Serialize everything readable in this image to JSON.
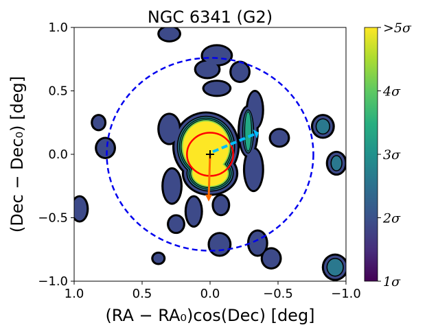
{
  "chart_data": {
    "type": "heatmap",
    "title": "NGC 6341 (G2)",
    "xlabel": "(RA − RA₀)cos(Dec) [deg]",
    "ylabel": "(Dec − Dec₀) [deg]",
    "xlim": [
      1.0,
      -1.0
    ],
    "ylim": [
      -1.0,
      1.0
    ],
    "xticks": [
      "1.0",
      "0.5",
      "0.0",
      "−0.5",
      "−1.0"
    ],
    "yticks": [
      "−1.0",
      "−0.5",
      "0.0",
      "0.5",
      "1.0"
    ],
    "xtick_values": [
      1.0,
      0.5,
      0.0,
      -0.5,
      -1.0
    ],
    "ytick_values": [
      -1.0,
      -0.5,
      0.0,
      0.5,
      1.0
    ],
    "colorbar": {
      "range": [
        1,
        5
      ],
      "ticks": [
        "1σ",
        "2σ",
        "3σ",
        "4σ",
        ">5σ"
      ],
      "tick_values": [
        1,
        2,
        3,
        4,
        5
      ],
      "colormap": "viridis"
    },
    "cluster_center": [
      0.0,
      0.0
    ],
    "inner_circle_radius_deg": 0.17,
    "outer_circle_radius_deg": 0.76,
    "proper_motion_arrow": {
      "from": [
        0.0,
        0.0
      ],
      "to": [
        0.01,
        -0.34
      ],
      "color": "#ff6a00"
    },
    "dashed_arrow": {
      "from": [
        -0.02,
        0.02
      ],
      "to": [
        -0.33,
        0.16
      ],
      "color": "#00bfff"
    },
    "blobs": [
      {
        "x": 0.03,
        "y": 0.06,
        "rx": 0.22,
        "ry": 0.25,
        "level": 5
      },
      {
        "x": 0.0,
        "y": -0.15,
        "rx": 0.18,
        "ry": 0.15,
        "level": 5
      },
      {
        "x": -0.28,
        "y": 0.18,
        "rx": 0.05,
        "ry": 0.18,
        "level": 3
      },
      {
        "x": -0.05,
        "y": 0.52,
        "rx": 0.08,
        "ry": 0.04,
        "level": 1
      },
      {
        "x": 0.02,
        "y": 0.67,
        "rx": 0.07,
        "ry": 0.05,
        "level": 1
      },
      {
        "x": -0.02,
        "y": 0.77,
        "rx": 0.06,
        "ry": 0.035,
        "level": 1
      },
      {
        "x": 0.3,
        "y": 0.95,
        "rx": 0.06,
        "ry": 0.04,
        "level": 1
      },
      {
        "x": -0.05,
        "y": 0.78,
        "rx": 0.09,
        "ry": 0.06,
        "level": 1
      },
      {
        "x": -0.22,
        "y": 0.65,
        "rx": 0.05,
        "ry": 0.06,
        "level": 1
      },
      {
        "x": 0.82,
        "y": 0.25,
        "rx": 0.03,
        "ry": 0.04,
        "level": 1
      },
      {
        "x": 0.77,
        "y": 0.05,
        "rx": 0.05,
        "ry": 0.06,
        "level": 1
      },
      {
        "x": -0.51,
        "y": 0.13,
        "rx": 0.05,
        "ry": 0.05,
        "level": 1
      },
      {
        "x": -0.83,
        "y": 0.22,
        "rx": 0.06,
        "ry": 0.07,
        "level": 2
      },
      {
        "x": -0.93,
        "y": -0.07,
        "rx": 0.05,
        "ry": 0.07,
        "level": 2
      },
      {
        "x": 0.96,
        "y": -0.43,
        "rx": 0.04,
        "ry": 0.08,
        "level": 1
      },
      {
        "x": 0.38,
        "y": -0.82,
        "rx": 0.025,
        "ry": 0.025,
        "level": 1
      },
      {
        "x": -0.07,
        "y": -0.71,
        "rx": 0.06,
        "ry": 0.07,
        "level": 1
      },
      {
        "x": -0.35,
        "y": -0.7,
        "rx": 0.05,
        "ry": 0.08,
        "level": 1
      },
      {
        "x": -0.45,
        "y": -0.82,
        "rx": 0.05,
        "ry": 0.06,
        "level": 1
      },
      {
        "x": -0.92,
        "y": -0.89,
        "rx": 0.07,
        "ry": 0.08,
        "level": 2
      },
      {
        "x": 0.28,
        "y": -0.25,
        "rx": 0.05,
        "ry": 0.12,
        "level": 1
      },
      {
        "x": 0.12,
        "y": -0.45,
        "rx": 0.04,
        "ry": 0.1,
        "level": 1
      },
      {
        "x": -0.08,
        "y": -0.4,
        "rx": 0.04,
        "ry": 0.06,
        "level": 1
      },
      {
        "x": -0.33,
        "y": 0.35,
        "rx": 0.04,
        "ry": 0.13,
        "level": 1
      },
      {
        "x": -0.32,
        "y": -0.12,
        "rx": 0.05,
        "ry": 0.15,
        "level": 1
      },
      {
        "x": 0.3,
        "y": 0.2,
        "rx": 0.06,
        "ry": 0.1,
        "level": 1
      },
      {
        "x": 0.25,
        "y": -0.55,
        "rx": 0.04,
        "ry": 0.05,
        "level": 1
      }
    ]
  }
}
